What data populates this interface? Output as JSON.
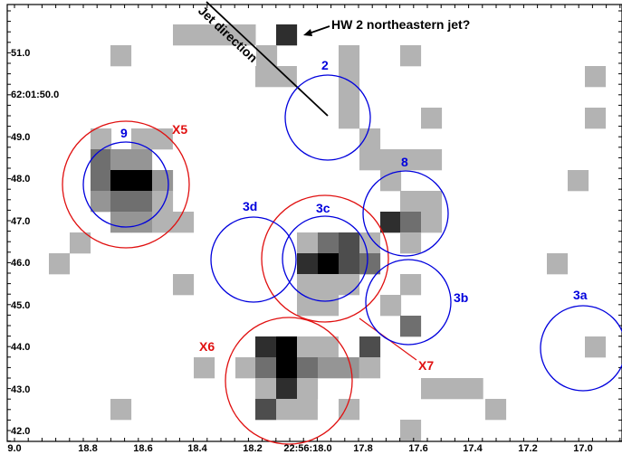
{
  "colors": {
    "blue": "#0000dd",
    "red": "#e01010",
    "frame": "#000000",
    "pixel_levels": {
      "1": "#b3b3b3",
      "2": "#959595",
      "3": "#6f6f6f",
      "4": "#4d4d4d",
      "5": "#2e2e2e",
      "6": "#000000"
    }
  },
  "axes": {
    "x_ticks": [
      "9.0",
      "18.8",
      "18.6",
      "18.4",
      "18.2",
      "22:56:18.0",
      "17.8",
      "17.6",
      "17.4",
      "17.2",
      "17.0"
    ],
    "y_ticks": [
      "51.0",
      "62:01:50.0",
      "49.0",
      "48.0",
      "47.0",
      "46.0",
      "45.0",
      "44.0",
      "43.0",
      "42.0"
    ]
  },
  "annotations": {
    "jet_direction": "Jet direction",
    "hw2_jet": "HW 2 northeastern jet?"
  },
  "blue_labels": [
    "2",
    "9",
    "8",
    "3d",
    "3c",
    "3b",
    "3a"
  ],
  "red_labels": [
    "X5",
    "X6",
    "X7"
  ],
  "pixels": [
    [
      191,
      27,
      4,
      1
    ],
    [
      305,
      27,
      1,
      5
    ],
    [
      122,
      50,
      1,
      1
    ],
    [
      283,
      50,
      1,
      1
    ],
    [
      374,
      50,
      1,
      1
    ],
    [
      442,
      50,
      1,
      1
    ],
    [
      282,
      73,
      2,
      1
    ],
    [
      374,
      73,
      1,
      1
    ],
    [
      646,
      73,
      1,
      1
    ],
    [
      374,
      96,
      1,
      1
    ],
    [
      374,
      119,
      1,
      1
    ],
    [
      465,
      119,
      1,
      1
    ],
    [
      646,
      119,
      1,
      1
    ],
    [
      100,
      142,
      1,
      1
    ],
    [
      145,
      142,
      2,
      1
    ],
    [
      397,
      142,
      1,
      1
    ],
    [
      100,
      165,
      1,
      3
    ],
    [
      122,
      165,
      1,
      2
    ],
    [
      145,
      165,
      1,
      2
    ],
    [
      397,
      165,
      1,
      1
    ],
    [
      420,
      165,
      1,
      1
    ],
    [
      442,
      165,
      1,
      1
    ],
    [
      465,
      165,
      1,
      1
    ],
    [
      100,
      188,
      1,
      3
    ],
    [
      122,
      188,
      1,
      6
    ],
    [
      145,
      188,
      1,
      6
    ],
    [
      168,
      188,
      1,
      2
    ],
    [
      420,
      188,
      1,
      1
    ],
    [
      627,
      188,
      1,
      1
    ],
    [
      100,
      211,
      1,
      2
    ],
    [
      122,
      211,
      1,
      3
    ],
    [
      145,
      211,
      1,
      3
    ],
    [
      168,
      211,
      1,
      1
    ],
    [
      442,
      211,
      1,
      1
    ],
    [
      465,
      211,
      1,
      1
    ],
    [
      122,
      234,
      1,
      2
    ],
    [
      145,
      234,
      1,
      2
    ],
    [
      168,
      234,
      1,
      1
    ],
    [
      191,
      234,
      1,
      1
    ],
    [
      420,
      234,
      1,
      5
    ],
    [
      442,
      234,
      1,
      3
    ],
    [
      465,
      234,
      1,
      1
    ],
    [
      77,
      257,
      1,
      1
    ],
    [
      328,
      257,
      1,
      1
    ],
    [
      351,
      257,
      1,
      3
    ],
    [
      374,
      257,
      1,
      4
    ],
    [
      397,
      257,
      1,
      1
    ],
    [
      442,
      257,
      1,
      1
    ],
    [
      54,
      280,
      1,
      1
    ],
    [
      328,
      280,
      1,
      5
    ],
    [
      351,
      280,
      1,
      6
    ],
    [
      374,
      280,
      1,
      4
    ],
    [
      397,
      280,
      1,
      3
    ],
    [
      604,
      280,
      1,
      1
    ],
    [
      191,
      303,
      1,
      1
    ],
    [
      328,
      303,
      1,
      1
    ],
    [
      351,
      303,
      1,
      1
    ],
    [
      374,
      303,
      1,
      1
    ],
    [
      442,
      303,
      1,
      1
    ],
    [
      328,
      326,
      1,
      1
    ],
    [
      351,
      326,
      1,
      1
    ],
    [
      420,
      326,
      1,
      1
    ],
    [
      442,
      349,
      1,
      3
    ],
    [
      282,
      372,
      1,
      5
    ],
    [
      305,
      372,
      1,
      6
    ],
    [
      328,
      372,
      2,
      1
    ],
    [
      397,
      372,
      1,
      4
    ],
    [
      646,
      372,
      1,
      1
    ],
    [
      214,
      395,
      1,
      1
    ],
    [
      260,
      395,
      1,
      1
    ],
    [
      282,
      395,
      1,
      3
    ],
    [
      305,
      395,
      1,
      6
    ],
    [
      328,
      395,
      1,
      3
    ],
    [
      351,
      395,
      2,
      2
    ],
    [
      397,
      395,
      1,
      1
    ],
    [
      282,
      418,
      1,
      1
    ],
    [
      305,
      418,
      1,
      5
    ],
    [
      328,
      418,
      1,
      1
    ],
    [
      465,
      418,
      3,
      1
    ],
    [
      122,
      441,
      1,
      1
    ],
    [
      282,
      441,
      1,
      4
    ],
    [
      305,
      441,
      2,
      1
    ],
    [
      374,
      441,
      1,
      1
    ],
    [
      536,
      441,
      1,
      1
    ],
    [
      442,
      464,
      1,
      1
    ]
  ]
}
